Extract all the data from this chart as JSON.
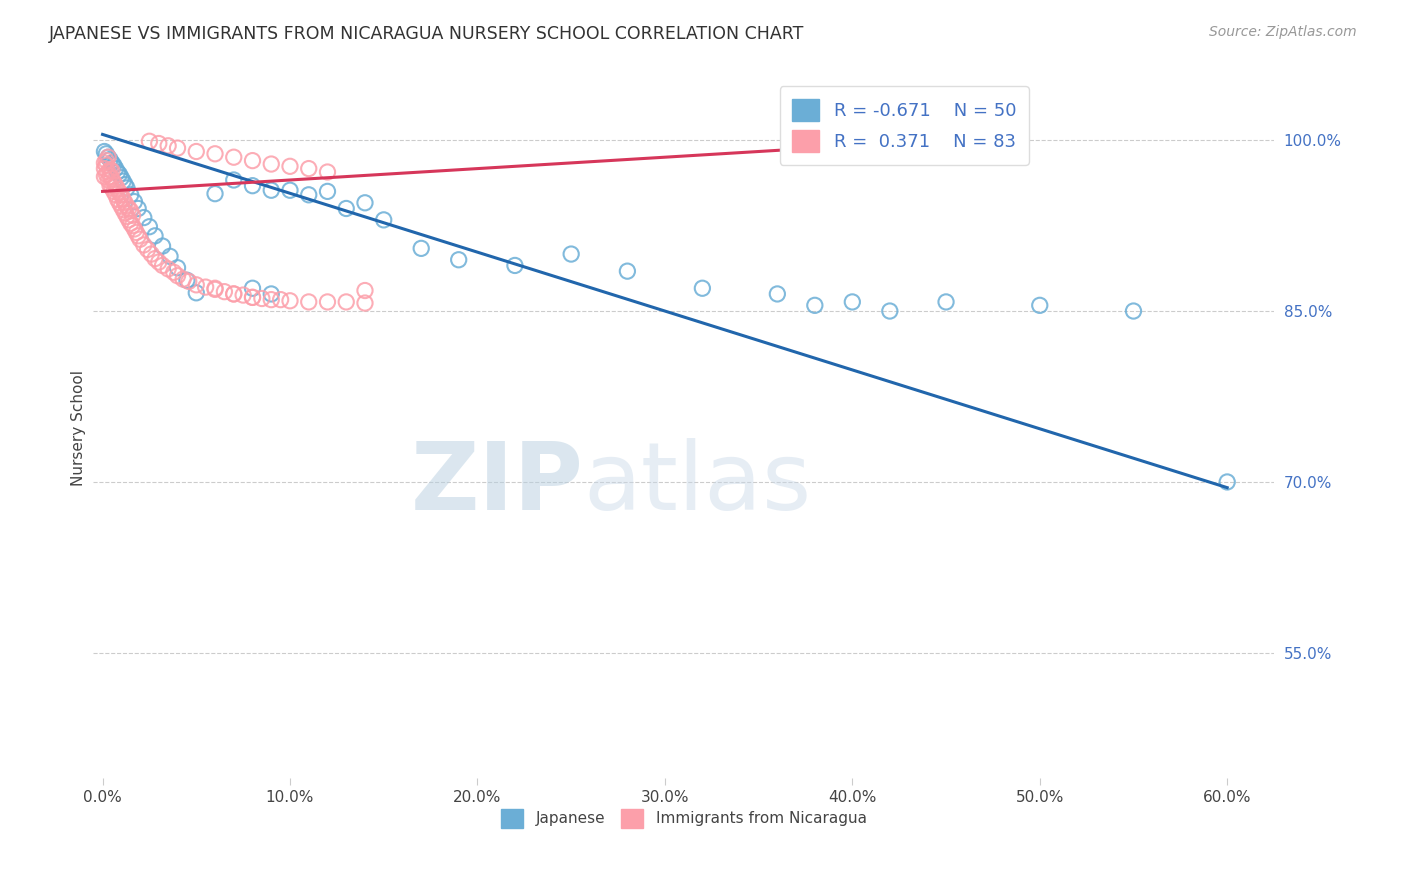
{
  "title": "JAPANESE VS IMMIGRANTS FROM NICARAGUA NURSERY SCHOOL CORRELATION CHART",
  "source": "Source: ZipAtlas.com",
  "ylabel": "Nursery School",
  "xlabel_ticks": [
    "0.0%",
    "10.0%",
    "20.0%",
    "30.0%",
    "40.0%",
    "50.0%",
    "60.0%"
  ],
  "xlabel_vals": [
    0.0,
    0.1,
    0.2,
    0.3,
    0.4,
    0.5,
    0.6
  ],
  "ylabel_ticks": [
    "55.0%",
    "70.0%",
    "85.0%",
    "100.0%"
  ],
  "ylabel_vals": [
    0.55,
    0.7,
    0.85,
    1.0
  ],
  "xlim": [
    -0.005,
    0.625
  ],
  "ylim": [
    0.44,
    1.055
  ],
  "legend_blue_r": "-0.671",
  "legend_blue_n": "50",
  "legend_pink_r": "0.371",
  "legend_pink_n": "83",
  "blue_color": "#6baed6",
  "pink_color": "#fc9faa",
  "blue_line_color": "#2166ac",
  "pink_line_color": "#d6365a",
  "watermark_zip": "ZIP",
  "watermark_atlas": "atlas",
  "gridline_y": [
    1.0,
    0.85,
    0.7,
    0.55
  ],
  "gridline_color": "#cccccc",
  "bg_color": "#ffffff",
  "blue_scatter_x": [
    0.001,
    0.002,
    0.003,
    0.004,
    0.005,
    0.006,
    0.007,
    0.008,
    0.009,
    0.01,
    0.011,
    0.012,
    0.013,
    0.015,
    0.017,
    0.019,
    0.022,
    0.025,
    0.028,
    0.032,
    0.036,
    0.04,
    0.045,
    0.05,
    0.06,
    0.07,
    0.08,
    0.09,
    0.1,
    0.11,
    0.13,
    0.15,
    0.17,
    0.19,
    0.22,
    0.25,
    0.28,
    0.32,
    0.36,
    0.4,
    0.45,
    0.5,
    0.55,
    0.6,
    0.12,
    0.14,
    0.08,
    0.09,
    0.38,
    0.42
  ],
  "blue_scatter_y": [
    0.99,
    0.988,
    0.985,
    0.983,
    0.98,
    0.978,
    0.975,
    0.972,
    0.97,
    0.967,
    0.964,
    0.961,
    0.958,
    0.952,
    0.946,
    0.94,
    0.932,
    0.924,
    0.916,
    0.907,
    0.898,
    0.888,
    0.877,
    0.866,
    0.953,
    0.965,
    0.96,
    0.956,
    0.956,
    0.952,
    0.94,
    0.93,
    0.905,
    0.895,
    0.89,
    0.9,
    0.885,
    0.87,
    0.865,
    0.858,
    0.858,
    0.855,
    0.85,
    0.7,
    0.955,
    0.945,
    0.87,
    0.865,
    0.855,
    0.85
  ],
  "pink_scatter_x": [
    0.001,
    0.001,
    0.001,
    0.002,
    0.002,
    0.002,
    0.003,
    0.003,
    0.003,
    0.004,
    0.004,
    0.004,
    0.005,
    0.005,
    0.005,
    0.006,
    0.006,
    0.007,
    0.007,
    0.008,
    0.008,
    0.009,
    0.009,
    0.01,
    0.01,
    0.011,
    0.011,
    0.012,
    0.012,
    0.013,
    0.013,
    0.014,
    0.014,
    0.015,
    0.015,
    0.016,
    0.016,
    0.017,
    0.018,
    0.019,
    0.02,
    0.022,
    0.024,
    0.026,
    0.028,
    0.03,
    0.032,
    0.035,
    0.038,
    0.04,
    0.043,
    0.046,
    0.05,
    0.055,
    0.06,
    0.065,
    0.07,
    0.075,
    0.08,
    0.085,
    0.09,
    0.095,
    0.1,
    0.11,
    0.12,
    0.13,
    0.14,
    0.025,
    0.03,
    0.035,
    0.04,
    0.05,
    0.06,
    0.07,
    0.08,
    0.09,
    0.1,
    0.11,
    0.12,
    0.06,
    0.07,
    0.08,
    0.14
  ],
  "pink_scatter_y": [
    0.968,
    0.975,
    0.98,
    0.97,
    0.978,
    0.982,
    0.965,
    0.972,
    0.985,
    0.96,
    0.968,
    0.974,
    0.958,
    0.966,
    0.973,
    0.955,
    0.963,
    0.952,
    0.96,
    0.948,
    0.957,
    0.945,
    0.954,
    0.942,
    0.952,
    0.939,
    0.948,
    0.936,
    0.945,
    0.933,
    0.942,
    0.93,
    0.94,
    0.927,
    0.938,
    0.925,
    0.934,
    0.922,
    0.919,
    0.916,
    0.913,
    0.908,
    0.904,
    0.9,
    0.896,
    0.893,
    0.89,
    0.887,
    0.884,
    0.881,
    0.878,
    0.876,
    0.873,
    0.871,
    0.869,
    0.867,
    0.865,
    0.864,
    0.862,
    0.861,
    0.86,
    0.86,
    0.859,
    0.858,
    0.858,
    0.858,
    0.857,
    0.999,
    0.997,
    0.995,
    0.993,
    0.99,
    0.988,
    0.985,
    0.982,
    0.979,
    0.977,
    0.975,
    0.972,
    0.87,
    0.865,
    0.862,
    0.868
  ],
  "blue_trendline_x": [
    0.0,
    0.6
  ],
  "blue_trendline_y": [
    1.005,
    0.695
  ],
  "pink_trendline_x": [
    0.0,
    0.45
  ],
  "pink_trendline_y": [
    0.955,
    1.0
  ]
}
